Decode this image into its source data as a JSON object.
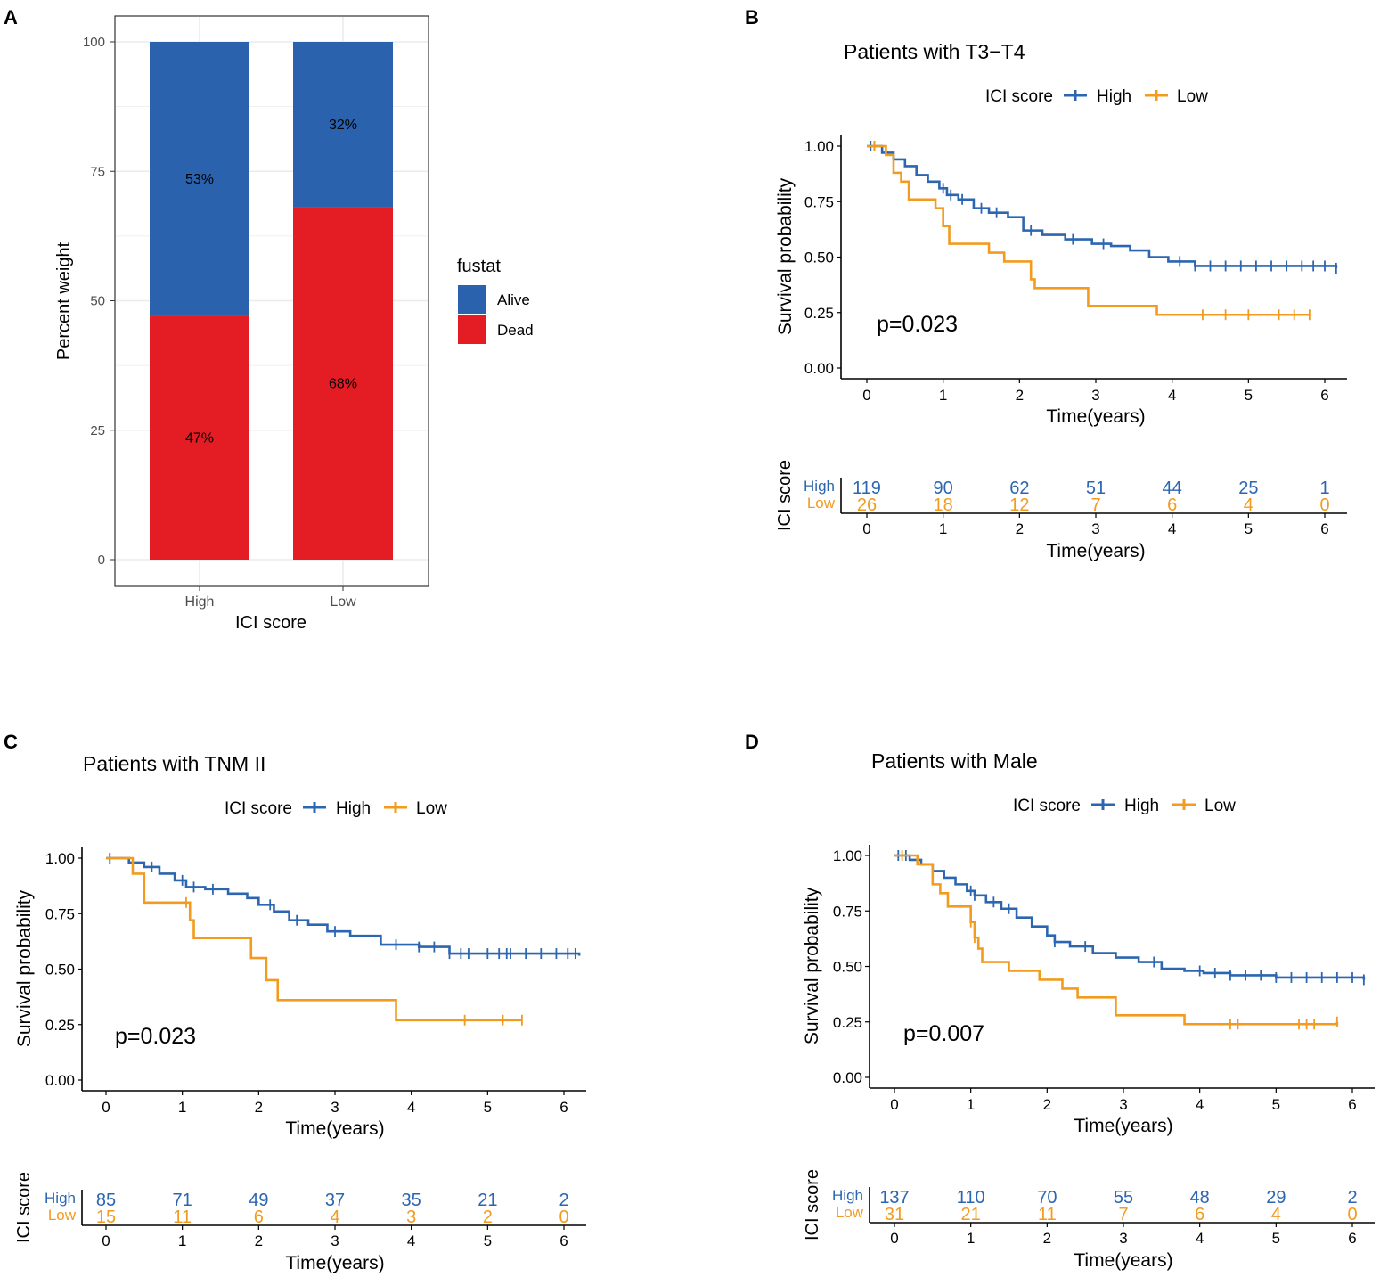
{
  "colors": {
    "alive": "#2A62AD",
    "dead": "#E41C24",
    "high": "#2C66B1",
    "low": "#F29B1E",
    "axis": "#000000",
    "grid": "#EBEBEB",
    "tick_text": "#4D4D4D"
  },
  "chart_data": [
    {
      "panel": "A",
      "type": "bar",
      "stacked": true,
      "title": "",
      "xlabel": "ICI score",
      "ylabel": "Percent weight",
      "categories": [
        "High",
        "Low"
      ],
      "series": [
        {
          "name": "Dead",
          "values": [
            47,
            68
          ],
          "labels": [
            "47%",
            "68%"
          ]
        },
        {
          "name": "Alive",
          "values": [
            53,
            32
          ],
          "labels": [
            "53%",
            "32%"
          ]
        }
      ],
      "ylim": [
        0,
        100
      ],
      "yticks": [
        "0",
        "25",
        "50",
        "75",
        "100"
      ],
      "legend_title": "fustat",
      "legend_items": [
        "Alive",
        "Dead"
      ],
      "legend_position": "right",
      "grid": true
    },
    {
      "panel": "B",
      "type": "line",
      "subtype": "kaplan-meier",
      "title": "Patients with T3−T4",
      "legend_title": "ICI score",
      "legend_items": [
        "High",
        "Low"
      ],
      "legend_position": "top",
      "xlabel": "Time(years)",
      "ylabel": "Survival probability",
      "xlim": [
        0,
        6.2
      ],
      "ylim": [
        0,
        1
      ],
      "xticks": [
        "0",
        "1",
        "2",
        "3",
        "4",
        "5",
        "6"
      ],
      "yticks": [
        "0.00",
        "0.25",
        "0.50",
        "0.75",
        "1.00"
      ],
      "pvalue": "p=0.023",
      "series": [
        {
          "name": "High",
          "x": [
            0,
            0.2,
            0.35,
            0.5,
            0.65,
            0.8,
            0.95,
            1.05,
            1.2,
            1.4,
            1.6,
            1.85,
            2.05,
            2.3,
            2.6,
            2.95,
            3.2,
            3.45,
            3.7,
            3.95,
            4.3,
            6.15
          ],
          "y": [
            1.0,
            0.97,
            0.94,
            0.91,
            0.87,
            0.84,
            0.81,
            0.78,
            0.76,
            0.72,
            0.7,
            0.68,
            0.62,
            0.6,
            0.58,
            0.56,
            0.55,
            0.53,
            0.5,
            0.48,
            0.46,
            0.45
          ],
          "censor_x": [
            0.05,
            0.1,
            1.0,
            1.1,
            1.25,
            1.5,
            1.7,
            2.15,
            2.7,
            3.1,
            4.1,
            4.3,
            4.5,
            4.7,
            4.9,
            5.1,
            5.3,
            5.5,
            5.7,
            5.85,
            6.0,
            6.15
          ]
        },
        {
          "name": "Low",
          "x": [
            0,
            0.25,
            0.35,
            0.45,
            0.55,
            0.9,
            1.0,
            1.08,
            1.6,
            1.8,
            2.15,
            2.2,
            2.9,
            3.8,
            5.8
          ],
          "y": [
            1.0,
            0.96,
            0.88,
            0.84,
            0.76,
            0.72,
            0.64,
            0.56,
            0.52,
            0.48,
            0.4,
            0.36,
            0.28,
            0.24,
            0.24
          ],
          "censor_x": [
            0.1,
            4.4,
            4.7,
            5.0,
            5.4,
            5.6,
            5.8
          ]
        }
      ],
      "risk_table": {
        "title": "ICI score",
        "xlabel": "Time(years)",
        "rows": [
          {
            "name": "High",
            "values": [
              "119",
              "90",
              "62",
              "51",
              "44",
              "25",
              "1"
            ]
          },
          {
            "name": "Low",
            "values": [
              "26",
              "18",
              "12",
              "7",
              "6",
              "4",
              "0"
            ]
          }
        ]
      }
    },
    {
      "panel": "C",
      "type": "line",
      "subtype": "kaplan-meier",
      "title": "Patients with TNM II",
      "legend_title": "ICI score",
      "legend_items": [
        "High",
        "Low"
      ],
      "legend_position": "top",
      "xlabel": "Time(years)",
      "ylabel": "Survival probability",
      "xlim": [
        0,
        6.2
      ],
      "ylim": [
        0,
        1
      ],
      "xticks": [
        "0",
        "1",
        "2",
        "3",
        "4",
        "5",
        "6"
      ],
      "yticks": [
        "0.00",
        "0.25",
        "0.50",
        "0.75",
        "1.00"
      ],
      "pvalue": "p=0.023",
      "series": [
        {
          "name": "High",
          "x": [
            0,
            0.3,
            0.5,
            0.7,
            0.9,
            1.05,
            1.3,
            1.6,
            1.85,
            2.0,
            2.2,
            2.4,
            2.65,
            2.9,
            3.2,
            3.6,
            4.1,
            4.5,
            6.2
          ],
          "y": [
            1.0,
            0.98,
            0.96,
            0.93,
            0.9,
            0.87,
            0.86,
            0.84,
            0.82,
            0.79,
            0.76,
            0.72,
            0.7,
            0.67,
            0.65,
            0.61,
            0.6,
            0.57,
            0.56
          ],
          "censor_x": [
            0.05,
            0.6,
            1.0,
            1.15,
            1.4,
            2.15,
            2.5,
            3.0,
            3.8,
            4.1,
            4.3,
            4.5,
            4.65,
            4.75,
            5.0,
            5.15,
            5.25,
            5.3,
            5.5,
            5.7,
            5.9,
            6.05,
            6.15
          ]
        },
        {
          "name": "Low",
          "x": [
            0,
            0.35,
            0.5,
            1.1,
            1.15,
            1.9,
            2.1,
            2.25,
            3.8,
            5.45
          ],
          "y": [
            1.0,
            0.93,
            0.8,
            0.72,
            0.64,
            0.55,
            0.45,
            0.36,
            0.27,
            0.27
          ],
          "censor_x": [
            1.05,
            4.7,
            5.2,
            5.45
          ]
        }
      ],
      "risk_table": {
        "title": "ICI score",
        "xlabel": "Time(years)",
        "rows": [
          {
            "name": "High",
            "values": [
              "85",
              "71",
              "49",
              "37",
              "35",
              "21",
              "2"
            ]
          },
          {
            "name": "Low",
            "values": [
              "15",
              "11",
              "6",
              "4",
              "3",
              "2",
              "0"
            ]
          }
        ]
      }
    },
    {
      "panel": "D",
      "type": "line",
      "subtype": "kaplan-meier",
      "title": "Patients with Male",
      "legend_title": "ICI score",
      "legend_items": [
        "High",
        "Low"
      ],
      "legend_position": "top",
      "xlabel": "Time(years)",
      "ylabel": "Survival probability",
      "xlim": [
        0,
        6.2
      ],
      "ylim": [
        0,
        1
      ],
      "xticks": [
        "0",
        "1",
        "2",
        "3",
        "4",
        "5",
        "6"
      ],
      "yticks": [
        "0.00",
        "0.25",
        "0.50",
        "0.75",
        "1.00"
      ],
      "pvalue": "p=0.007",
      "series": [
        {
          "name": "High",
          "x": [
            0,
            0.2,
            0.35,
            0.5,
            0.65,
            0.8,
            0.95,
            1.05,
            1.2,
            1.4,
            1.6,
            1.8,
            2.0,
            2.1,
            2.3,
            2.6,
            2.9,
            3.2,
            3.5,
            3.8,
            4.05,
            4.4,
            5.0,
            6.15
          ],
          "y": [
            1.0,
            0.98,
            0.96,
            0.93,
            0.9,
            0.87,
            0.84,
            0.82,
            0.79,
            0.76,
            0.72,
            0.68,
            0.64,
            0.61,
            0.59,
            0.56,
            0.54,
            0.52,
            0.49,
            0.48,
            0.47,
            0.46,
            0.45,
            0.44
          ],
          "censor_x": [
            0.05,
            0.15,
            0.3,
            1.0,
            1.05,
            1.3,
            1.5,
            2.1,
            2.5,
            3.4,
            4.0,
            4.2,
            4.4,
            4.6,
            4.8,
            5.0,
            5.2,
            5.4,
            5.6,
            5.8,
            6.0,
            6.15
          ]
        },
        {
          "name": "Low",
          "x": [
            0,
            0.3,
            0.5,
            0.6,
            0.7,
            1.0,
            1.05,
            1.1,
            1.15,
            1.5,
            1.9,
            2.2,
            2.4,
            2.9,
            3.8,
            5.8
          ],
          "y": [
            1.0,
            0.96,
            0.87,
            0.83,
            0.77,
            0.7,
            0.63,
            0.58,
            0.52,
            0.48,
            0.44,
            0.4,
            0.36,
            0.28,
            0.24,
            0.25
          ],
          "censor_x": [
            0.1,
            1.0,
            1.05,
            4.4,
            4.5,
            5.3,
            5.4,
            5.5,
            5.8
          ]
        }
      ],
      "risk_table": {
        "title": "ICI score",
        "xlabel": "Time(years)",
        "rows": [
          {
            "name": "High",
            "values": [
              "137",
              "110",
              "70",
              "55",
              "48",
              "29",
              "2"
            ]
          },
          {
            "name": "Low",
            "values": [
              "31",
              "21",
              "11",
              "7",
              "6",
              "4",
              "0"
            ]
          }
        ]
      }
    }
  ]
}
